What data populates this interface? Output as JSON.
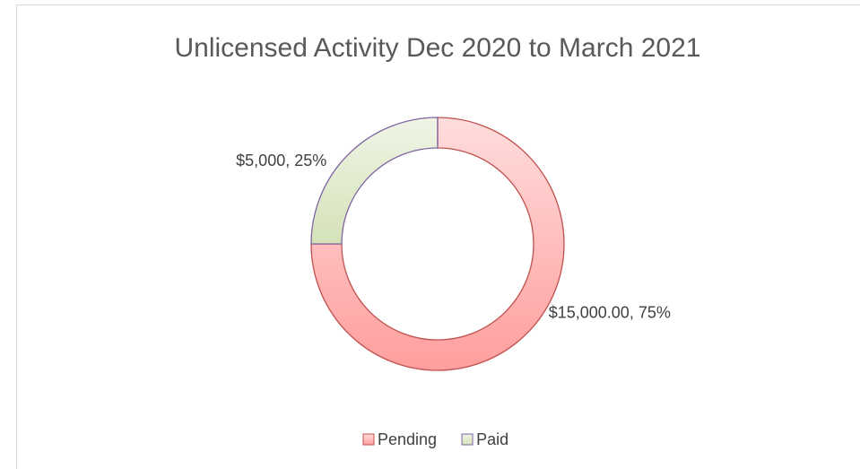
{
  "chart_data": {
    "type": "donut",
    "title": "Unlicensed Activity Dec 2020 to March 2021",
    "categories": [
      "Pending",
      "Paid"
    ],
    "values": [
      15000,
      5000
    ],
    "value_labels": [
      "$15,000.00, 75%",
      "$5,000, 25%"
    ],
    "colors": [
      "#ff9e9e",
      "#d4e2b8"
    ],
    "edge_colors": [
      "#c0504d",
      "#7f64a2"
    ],
    "legend": "bottom"
  }
}
